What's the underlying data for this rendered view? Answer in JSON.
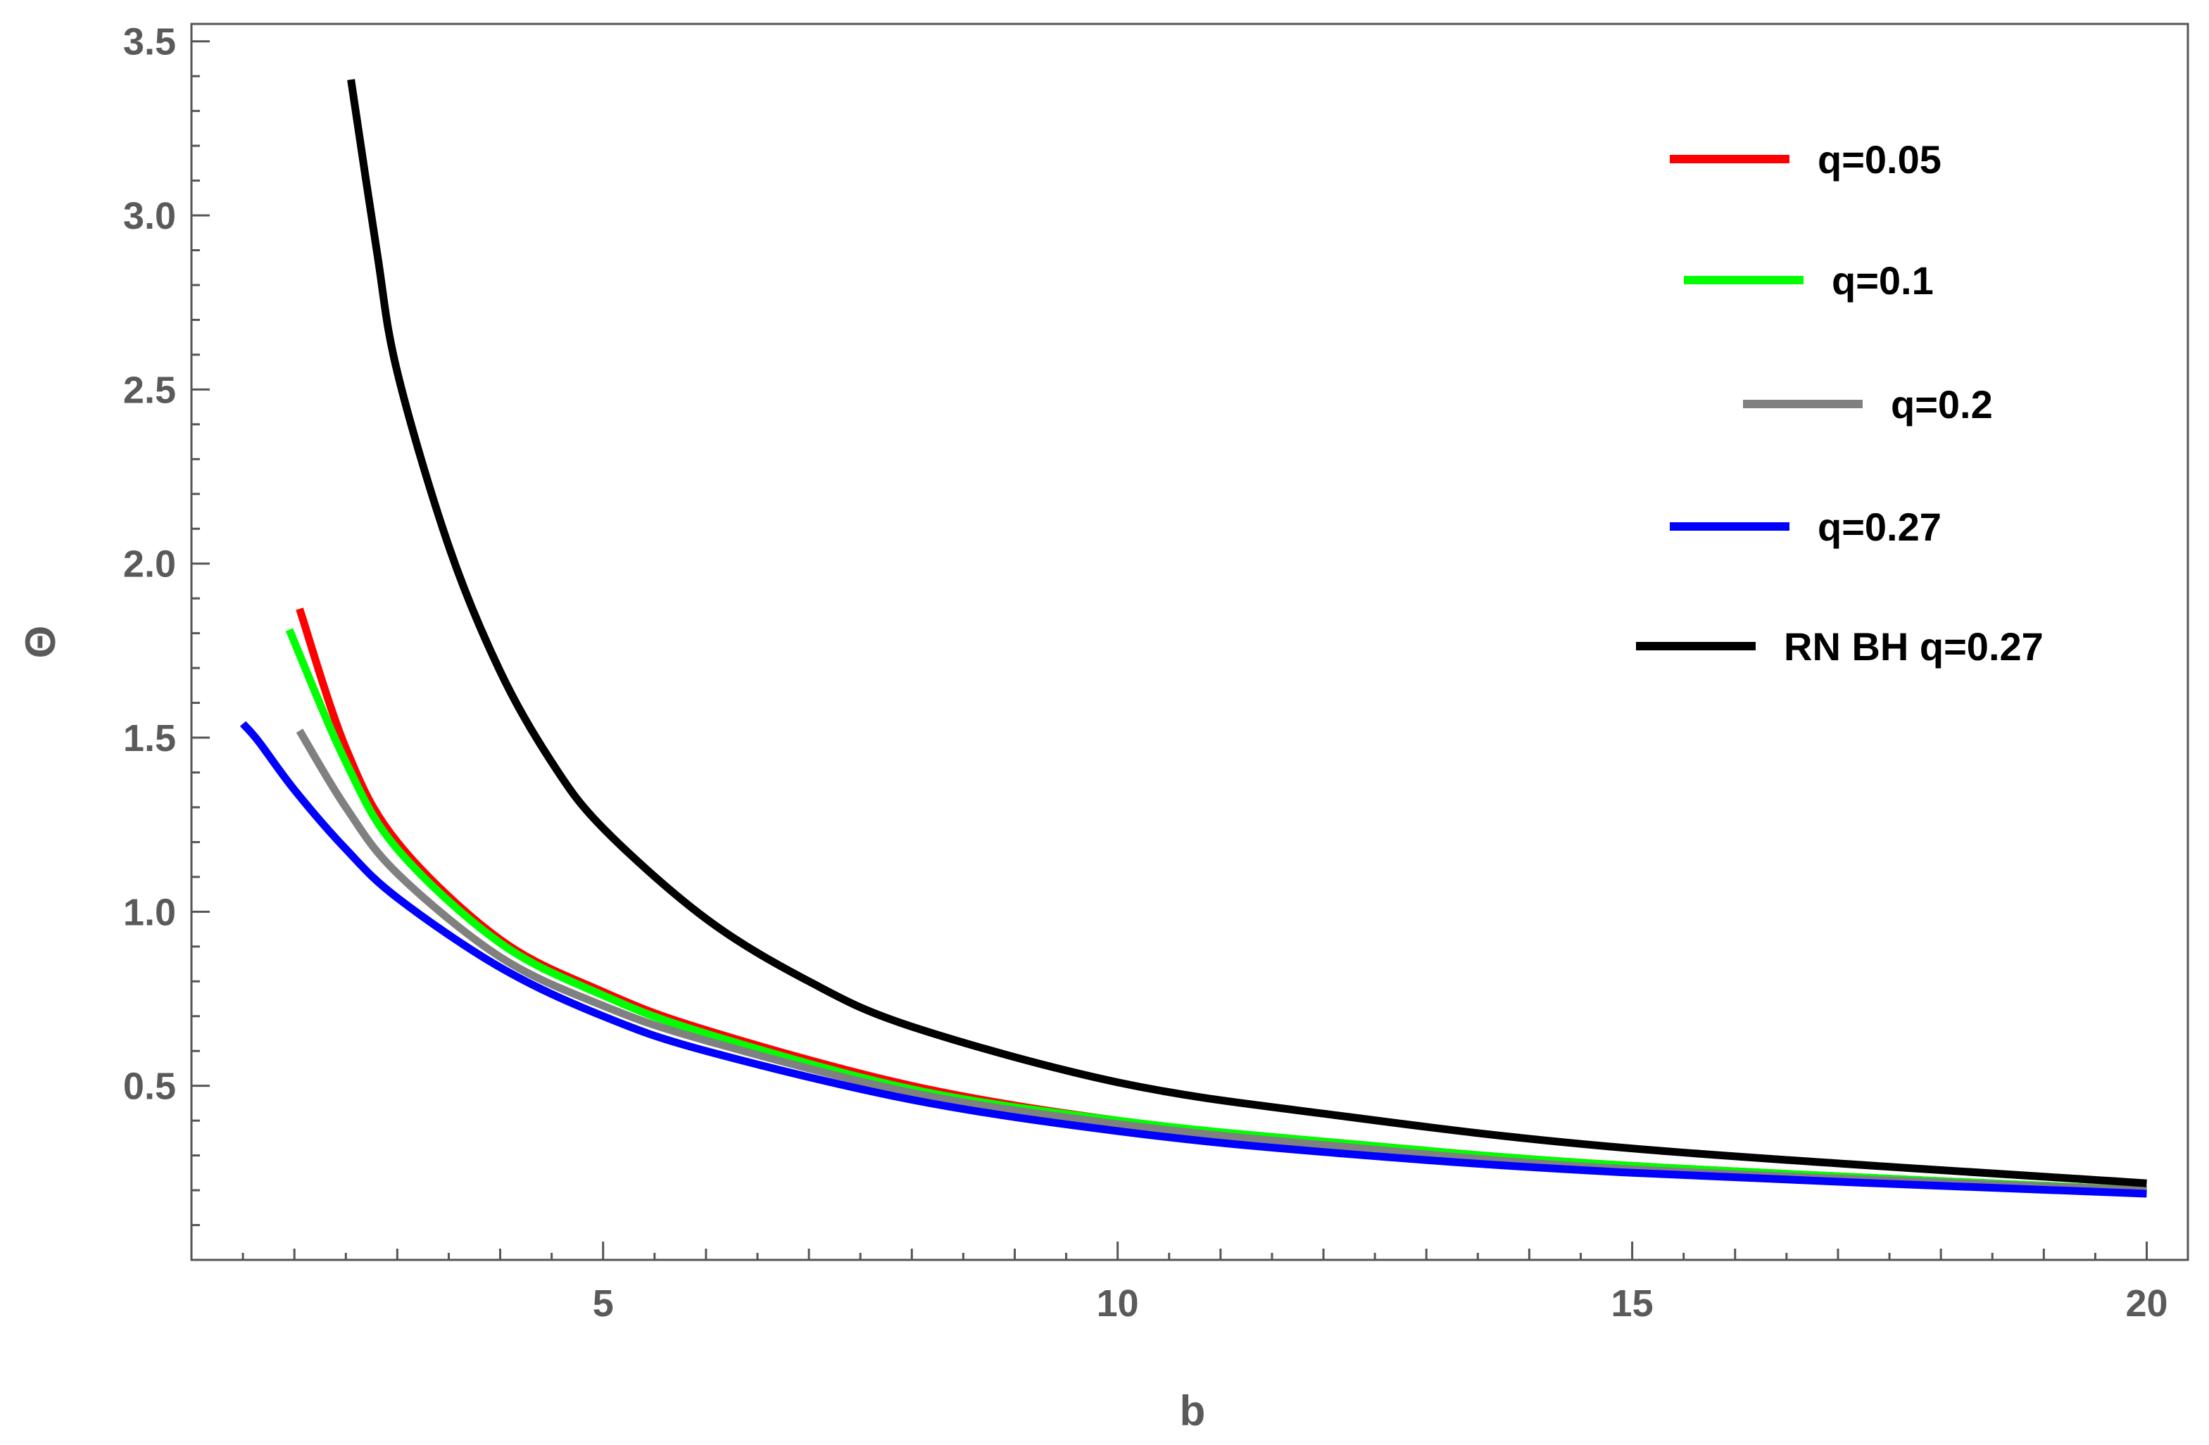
{
  "chart_data": {
    "type": "line",
    "xlabel": "b",
    "ylabel": "Θ",
    "xlim": [
      1.0,
      20.4
    ],
    "ylim": [
      0.0,
      3.55
    ],
    "xticks": [
      5,
      10,
      15,
      20
    ],
    "yticks": [
      0.5,
      1.0,
      1.5,
      2.0,
      2.5,
      3.0,
      3.5
    ],
    "xtick_labels": [
      "5",
      "10",
      "15",
      "20"
    ],
    "ytick_labels": [
      "0.5",
      "1.0",
      "1.5",
      "2.0",
      "2.5",
      "3.0",
      "3.5"
    ],
    "grid": false,
    "legend_position": "top-right",
    "series": [
      {
        "name": "q=0.05",
        "color": "#ff0000",
        "x": [
          2.05,
          2.5,
          3.0,
          4.0,
          5.0,
          6.0,
          8.0,
          10.0,
          12.0,
          15.0,
          20.0
        ],
        "y": [
          1.87,
          1.47,
          1.2,
          0.92,
          0.77,
          0.66,
          0.5,
          0.4,
          0.34,
          0.27,
          0.2
        ]
      },
      {
        "name": "q=0.1",
        "color": "#00ff00",
        "x": [
          1.95,
          2.5,
          3.0,
          4.0,
          5.0,
          6.0,
          8.0,
          10.0,
          12.0,
          15.0,
          20.0
        ],
        "y": [
          1.81,
          1.43,
          1.18,
          0.91,
          0.76,
          0.65,
          0.49,
          0.4,
          0.34,
          0.27,
          0.2
        ]
      },
      {
        "name": "q=0.2",
        "color": "#808080",
        "x": [
          2.05,
          2.5,
          3.0,
          4.0,
          5.0,
          6.0,
          8.0,
          10.0,
          12.0,
          15.0,
          20.0
        ],
        "y": [
          1.52,
          1.3,
          1.11,
          0.87,
          0.73,
          0.63,
          0.48,
          0.39,
          0.33,
          0.26,
          0.2
        ]
      },
      {
        "name": "q=0.27",
        "color": "#0000ff",
        "x": [
          1.5,
          1.65,
          2.0,
          2.5,
          3.0,
          4.0,
          5.0,
          6.0,
          8.0,
          10.0,
          12.0,
          15.0,
          20.0
        ],
        "y": [
          1.54,
          1.49,
          1.35,
          1.18,
          1.04,
          0.84,
          0.7,
          0.6,
          0.46,
          0.37,
          0.31,
          0.25,
          0.19
        ]
      },
      {
        "name": "RN BH q=0.27",
        "color": "#000000",
        "x": [
          2.55,
          2.8,
          3.0,
          3.5,
          4.0,
          4.5,
          5.0,
          6.0,
          7.0,
          8.0,
          10.0,
          12.0,
          15.0,
          20.0
        ],
        "y": [
          3.39,
          2.9,
          2.55,
          2.05,
          1.69,
          1.43,
          1.24,
          0.98,
          0.8,
          0.67,
          0.51,
          0.42,
          0.32,
          0.22
        ]
      }
    ]
  }
}
